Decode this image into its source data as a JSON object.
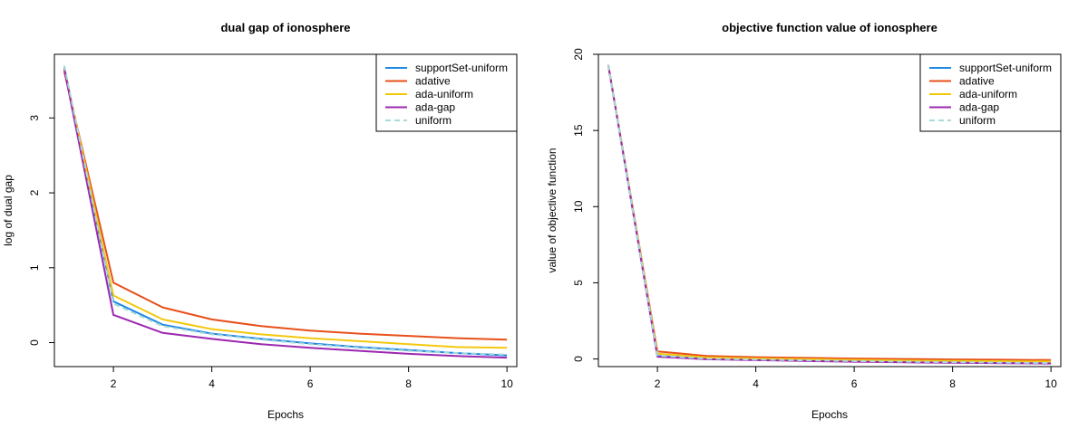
{
  "chart_data": [
    {
      "type": "line",
      "title": "dual gap of ionosphere",
      "xlabel": "Epochs",
      "ylabel": "log of dual gap",
      "xlim": [
        0.8,
        10.2
      ],
      "ylim": [
        -0.32,
        3.85
      ],
      "xticks": [
        2,
        4,
        6,
        8,
        10
      ],
      "yticks": [
        0,
        1,
        2,
        3
      ],
      "x": [
        1,
        2,
        3,
        4,
        5,
        6,
        7,
        8,
        9,
        10
      ],
      "legend_position": "top-right",
      "series": [
        {
          "name": "supportSet-uniform",
          "color": "#1E88E5",
          "dashed": false,
          "values": [
            3.68,
            0.55,
            0.24,
            0.12,
            0.05,
            -0.01,
            -0.06,
            -0.1,
            -0.14,
            -0.17
          ]
        },
        {
          "name": "adative",
          "color": "#E8501A",
          "dashed": false,
          "values": [
            3.62,
            0.8,
            0.47,
            0.31,
            0.22,
            0.16,
            0.12,
            0.09,
            0.06,
            0.04
          ]
        },
        {
          "name": "ada-uniform",
          "color": "#F2C80F",
          "dashed": false,
          "values": [
            3.66,
            0.63,
            0.31,
            0.18,
            0.11,
            0.06,
            0.02,
            -0.02,
            -0.06,
            -0.07
          ]
        },
        {
          "name": "ada-gap",
          "color": "#9C27B0",
          "dashed": false,
          "values": [
            3.65,
            0.37,
            0.13,
            0.05,
            -0.02,
            -0.07,
            -0.11,
            -0.15,
            -0.18,
            -0.2
          ]
        },
        {
          "name": "uniform",
          "color": "#A8D8D8",
          "dashed": true,
          "values": [
            3.7,
            0.52,
            0.22,
            0.11,
            0.04,
            -0.02,
            -0.07,
            -0.11,
            -0.14,
            -0.16
          ]
        }
      ]
    },
    {
      "type": "line",
      "title": "objective function value of ionosphere",
      "xlabel": "Epochs",
      "ylabel": "value of objective function",
      "xlim": [
        0.8,
        10.2
      ],
      "ylim": [
        -0.5,
        20.0
      ],
      "xticks": [
        2,
        4,
        6,
        8,
        10
      ],
      "yticks": [
        0,
        5,
        10,
        15,
        20
      ],
      "x": [
        1,
        2,
        3,
        4,
        5,
        6,
        7,
        8,
        9,
        10
      ],
      "legend_position": "top-right",
      "series": [
        {
          "name": "supportSet-uniform",
          "color": "#1E88E5",
          "dashed": false,
          "values": [
            19.3,
            0.2,
            0.0,
            -0.05,
            -0.1,
            -0.15,
            -0.2,
            -0.22,
            -0.25,
            -0.27
          ]
        },
        {
          "name": "adative",
          "color": "#E8501A",
          "dashed": false,
          "values": [
            19.3,
            0.5,
            0.2,
            0.12,
            0.07,
            0.03,
            0.0,
            -0.03,
            -0.05,
            -0.07
          ]
        },
        {
          "name": "ada-uniform",
          "color": "#F2C80F",
          "dashed": false,
          "values": [
            19.3,
            0.35,
            0.1,
            0.03,
            -0.02,
            -0.06,
            -0.1,
            -0.13,
            -0.15,
            -0.17
          ]
        },
        {
          "name": "ada-gap",
          "color": "#9C27B0",
          "dashed": false,
          "values": [
            19.3,
            0.15,
            -0.02,
            -0.08,
            -0.13,
            -0.18,
            -0.22,
            -0.25,
            -0.28,
            -0.3
          ]
        },
        {
          "name": "uniform",
          "color": "#A8D8D8",
          "dashed": true,
          "values": [
            19.3,
            0.22,
            0.02,
            -0.04,
            -0.09,
            -0.14,
            -0.18,
            -0.21,
            -0.24,
            -0.26
          ]
        }
      ]
    }
  ]
}
